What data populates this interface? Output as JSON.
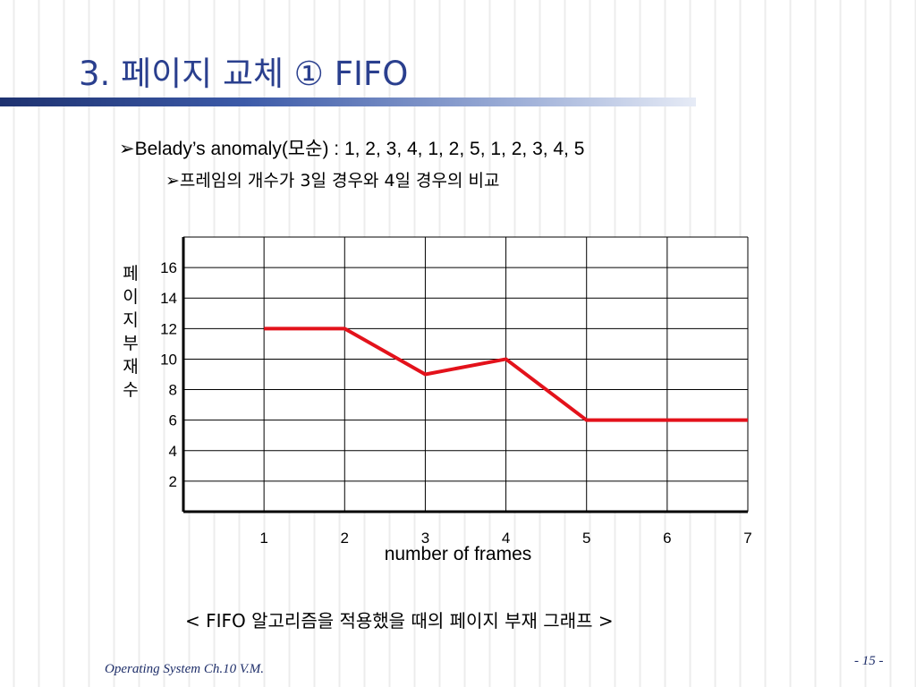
{
  "slide": {
    "title": "3. 페이지 교체 ① FIFO",
    "bullet1": {
      "arrow": "➢",
      "text": "Belady’s anomaly(모순) : 1, 2, 3, 4, 1, 2, 5, 1, 2, 3, 4, 5"
    },
    "bullet2": {
      "arrow": "➢",
      "text": "프레임의 개수가 3일 경우와 4일 경우의 비교"
    },
    "caption": "< FIFO 알고리즘을 적용했을 때의 페이지 부재 그래프 >",
    "footer": "Operating System Ch.10 V.M.",
    "page_number": "- 15 -"
  },
  "chart_data": {
    "type": "line",
    "xlabel": "number of frames",
    "ylabel": "페이지부재수",
    "x_ticks": [
      "1",
      "2",
      "3",
      "4",
      "5",
      "6",
      "7"
    ],
    "y_ticks": [
      "2",
      "4",
      "6",
      "8",
      "10",
      "12",
      "14",
      "16"
    ],
    "xlim": [
      0,
      7
    ],
    "ylim": [
      0,
      18
    ],
    "grid": true,
    "line_color": "#e3121b",
    "series": [
      {
        "x": [
          1,
          2,
          3,
          4,
          5,
          6,
          7
        ],
        "y": [
          12,
          12,
          9,
          10,
          6,
          6,
          6
        ]
      }
    ]
  }
}
